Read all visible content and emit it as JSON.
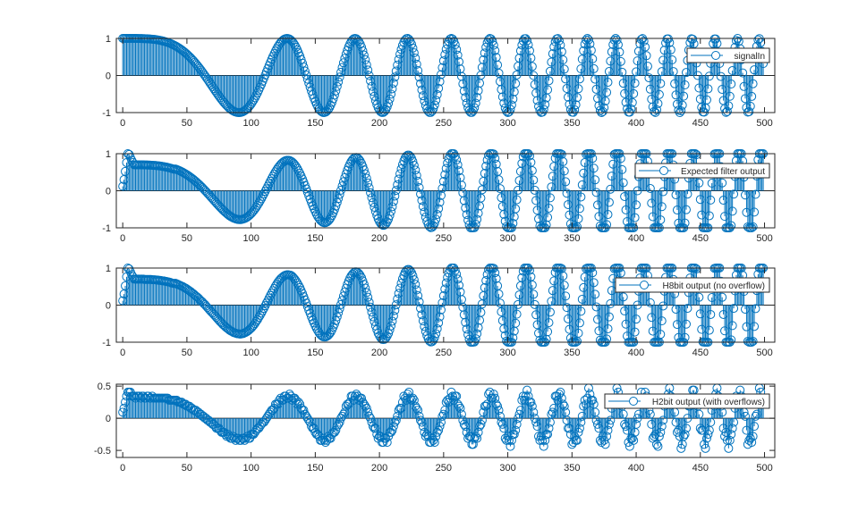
{
  "chart_data": [
    {
      "type": "stem",
      "series_key": "signalIn",
      "legend": "signalIn",
      "legend_placement": "top-right",
      "xlim": [
        -5,
        508
      ],
      "ylim": [
        -1,
        1
      ],
      "xticks": [
        0,
        50,
        100,
        150,
        200,
        250,
        300,
        350,
        400,
        450,
        500
      ],
      "yticks": [
        -1,
        0,
        1
      ],
      "grid": false
    },
    {
      "type": "stem",
      "series_key": "expected",
      "legend": "Expected filter output",
      "legend_placement": "top-right",
      "xlim": [
        -5,
        508
      ],
      "ylim": [
        -1,
        1
      ],
      "xticks": [
        0,
        50,
        100,
        150,
        200,
        250,
        300,
        350,
        400,
        450,
        500
      ],
      "yticks": [
        -1,
        0,
        1
      ],
      "grid": false
    },
    {
      "type": "stem",
      "series_key": "h8",
      "legend": "H8bit output (no overflow)",
      "legend_placement": "top-right",
      "xlim": [
        -5,
        508
      ],
      "ylim": [
        -1,
        1
      ],
      "xticks": [
        0,
        50,
        100,
        150,
        200,
        250,
        300,
        350,
        400,
        450,
        500
      ],
      "yticks": [
        -1,
        0,
        1
      ],
      "grid": false
    },
    {
      "type": "stem",
      "series_key": "h2",
      "legend": "H2bit output (with overflows)",
      "legend_placement": "top-right",
      "xlim": [
        -5,
        508
      ],
      "ylim": [
        -0.61,
        0.53
      ],
      "xticks": [
        0,
        50,
        100,
        150,
        200,
        250,
        300,
        350,
        400,
        450,
        500
      ],
      "yticks": [
        -0.5,
        0,
        0.5
      ],
      "grid": false
    }
  ],
  "colors": {
    "series": "#0072BD",
    "axes": "#262626",
    "background": "#ffffff"
  },
  "samples": 500
}
